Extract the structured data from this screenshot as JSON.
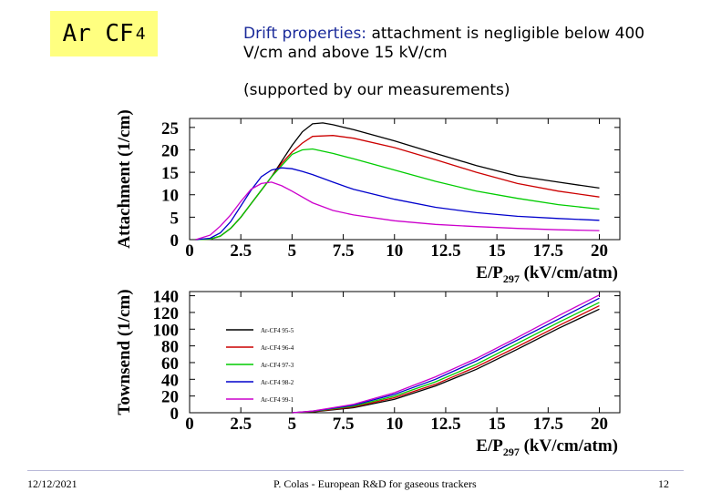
{
  "slide": {
    "title_main": "Ar CF",
    "title_sub": "4",
    "drift_label": "Drift properties:",
    "drift_text": " attachment is negligible below 400 V/cm and above 15 kV/cm",
    "support_text": "(supported by our measurements)",
    "footer_date": "12/12/2021",
    "footer_center": "P. Colas  - European R&D for gaseous trackers",
    "footer_page": "12"
  },
  "chart_data": [
    {
      "type": "line",
      "ylabel": "Attachment (1/cm)",
      "xlabel_main": "E/P",
      "xlabel_sub": "297",
      "xlabel_unit": " (kV/cm/atm)",
      "xlim": [
        0,
        21
      ],
      "ylim": [
        0,
        27
      ],
      "xticks": [
        "0",
        "2.5",
        "5",
        "7.5",
        "10",
        "12.5",
        "15",
        "17.5",
        "20"
      ],
      "yticks": [
        "0",
        "5",
        "10",
        "15",
        "20",
        "25"
      ],
      "series": [
        {
          "name": "Ar-CF4 95-5",
          "color": "#000000",
          "x": [
            0.3,
            1,
            1.5,
            2,
            2.5,
            3,
            3.5,
            4,
            4.5,
            5,
            5.5,
            6,
            6.5,
            7,
            8,
            10,
            12,
            14,
            16,
            18,
            20
          ],
          "y": [
            0,
            0.1,
            0.8,
            2.5,
            5,
            8,
            11,
            14,
            17.5,
            21,
            24,
            25.8,
            26,
            25.6,
            24.5,
            22,
            19.2,
            16.5,
            14.2,
            12.8,
            11.5
          ]
        },
        {
          "name": "Ar-CF4 96-4",
          "color": "#cc0000",
          "x": [
            0.3,
            1,
            1.5,
            2,
            2.5,
            3,
            3.5,
            4,
            4.5,
            5,
            5.5,
            6,
            7,
            8,
            10,
            12,
            14,
            16,
            18,
            20
          ],
          "y": [
            0,
            0.1,
            0.8,
            2.5,
            5,
            8,
            11,
            14,
            17,
            19.5,
            21.5,
            23,
            23.2,
            22.6,
            20.5,
            17.8,
            15,
            12.5,
            10.8,
            9.5
          ]
        },
        {
          "name": "Ar-CF4 97-3",
          "color": "#00cc00",
          "x": [
            0.3,
            1,
            1.5,
            2,
            2.5,
            3,
            3.5,
            4,
            4.5,
            5,
            5.5,
            6,
            7,
            8,
            10,
            12,
            14,
            16,
            18,
            20
          ],
          "y": [
            0,
            0.1,
            0.8,
            2.5,
            5,
            8,
            11,
            14,
            16.5,
            19,
            20,
            20.2,
            19.2,
            18,
            15.5,
            13,
            10.8,
            9.2,
            7.8,
            6.8
          ]
        },
        {
          "name": "Ar-CF4 98-2",
          "color": "#0000cc",
          "x": [
            0.3,
            1,
            1.5,
            2,
            2.5,
            3,
            3.5,
            4,
            4.5,
            5,
            5.5,
            6,
            7,
            8,
            10,
            12,
            14,
            16,
            18,
            20
          ],
          "y": [
            0,
            0.3,
            1.5,
            4,
            7.5,
            11,
            14,
            15.5,
            16,
            15.8,
            15.2,
            14.5,
            12.8,
            11.2,
            9,
            7.2,
            6,
            5.2,
            4.7,
            4.3
          ]
        },
        {
          "name": "Ar-CF4 99-1",
          "color": "#cc00cc",
          "x": [
            0.3,
            1,
            1.5,
            2,
            2.5,
            3,
            3.5,
            4,
            4.5,
            5,
            6,
            7,
            8,
            10,
            12,
            14,
            16,
            18,
            20
          ],
          "y": [
            0,
            1,
            3,
            5.5,
            8.5,
            11.2,
            12.5,
            12.8,
            12,
            10.8,
            8.2,
            6.5,
            5.5,
            4.2,
            3.4,
            2.9,
            2.5,
            2.2,
            2
          ]
        }
      ]
    },
    {
      "type": "line",
      "ylabel": "Townsend (1/cm)",
      "xlabel_main": "E/P",
      "xlabel_sub": "297",
      "xlabel_unit": " (kV/cm/atm)",
      "xlim": [
        0,
        21
      ],
      "ylim": [
        0,
        145
      ],
      "xticks": [
        "0",
        "2.5",
        "5",
        "7.5",
        "10",
        "12.5",
        "15",
        "17.5",
        "20"
      ],
      "yticks": [
        "0",
        "20",
        "40",
        "60",
        "80",
        "100",
        "120",
        "140"
      ],
      "legend_position": "left",
      "series": [
        {
          "name": "Ar-CF4 95-5",
          "color": "#000000",
          "x": [
            5,
            6,
            8,
            10,
            12,
            14,
            16,
            18,
            20
          ],
          "y": [
            0,
            1,
            6,
            16,
            32,
            52,
            76,
            101,
            124
          ]
        },
        {
          "name": "Ar-CF4 96-4",
          "color": "#cc0000",
          "x": [
            5,
            6,
            8,
            10,
            12,
            14,
            16,
            18,
            20
          ],
          "y": [
            0,
            1.2,
            7,
            18,
            34,
            55,
            79,
            104,
            128
          ]
        },
        {
          "name": "Ar-CF4 97-3",
          "color": "#00cc00",
          "x": [
            5,
            6,
            8,
            10,
            12,
            14,
            16,
            18,
            20
          ],
          "y": [
            0,
            1.5,
            8,
            20,
            37,
            58,
            83,
            108,
            132
          ]
        },
        {
          "name": "Ar-CF4 98-2",
          "color": "#0000cc",
          "x": [
            5,
            6,
            8,
            10,
            12,
            14,
            16,
            18,
            20
          ],
          "y": [
            0,
            1.8,
            9,
            22,
            40,
            62,
            87,
            112,
            137
          ]
        },
        {
          "name": "Ar-CF4 99-1",
          "color": "#cc00cc",
          "x": [
            5,
            6,
            8,
            10,
            12,
            14,
            16,
            18,
            20
          ],
          "y": [
            0,
            2,
            10,
            24,
            43,
            65,
            90,
            116,
            141
          ]
        }
      ]
    }
  ]
}
